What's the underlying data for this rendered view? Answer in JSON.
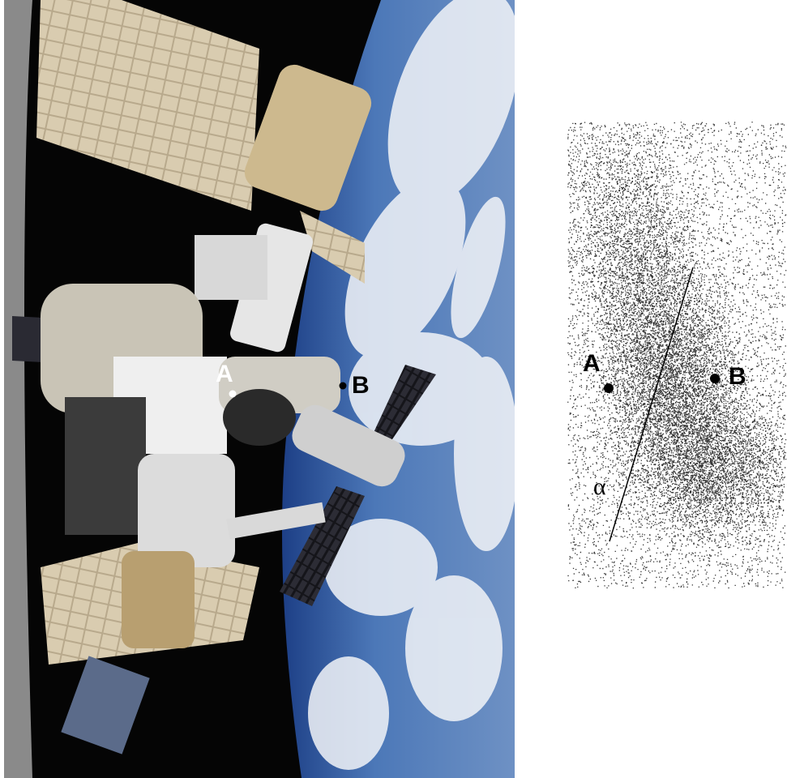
{
  "photo": {
    "label_a": "A",
    "label_b": "B"
  },
  "density_plot": {
    "label_a": "A",
    "label_b": "B",
    "line_label": "α"
  }
}
